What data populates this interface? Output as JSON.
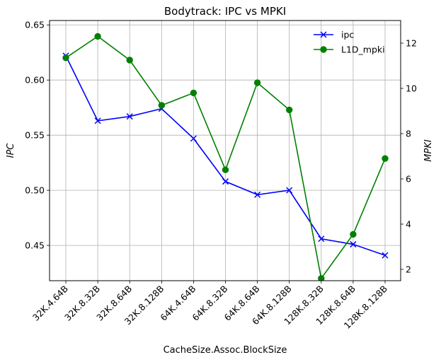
{
  "chart_data": {
    "type": "line",
    "title": "Bodytrack: IPC vs MPKI",
    "xlabel": "CacheSize.Assoc.BlockSize",
    "ylabel_left": "IPC",
    "ylabel_right": "MPKI",
    "categories": [
      "32K.4.64B",
      "32K.8.32B",
      "32K.8.64B",
      "32K.8.128B",
      "64K.4.64B",
      "64K.8.32B",
      "64K.8.64B",
      "64K.8.128B",
      "128K.8.32B",
      "128K.8.64B",
      "128K.8.128B"
    ],
    "ylim_left": [
      0.418,
      0.654
    ],
    "ylim_right": [
      1.5,
      13.0
    ],
    "yticks_left": [
      "0.45",
      "0.50",
      "0.55",
      "0.60",
      "0.65"
    ],
    "yticks_right": [
      "2",
      "4",
      "6",
      "8",
      "10",
      "12"
    ],
    "grid": true,
    "legend_position": "top-right",
    "series": [
      {
        "name": "ipc",
        "axis": "left",
        "color": "#0000ff",
        "marker": "x",
        "values": [
          0.622,
          0.563,
          0.567,
          0.574,
          0.547,
          0.508,
          0.496,
          0.5,
          0.456,
          0.451,
          0.441
        ]
      },
      {
        "name": "L1D_mpki",
        "axis": "right",
        "color": "#008000",
        "marker": "o",
        "values": [
          11.35,
          12.3,
          11.25,
          9.25,
          9.8,
          6.4,
          10.25,
          9.05,
          1.6,
          3.55,
          6.9
        ]
      }
    ]
  }
}
